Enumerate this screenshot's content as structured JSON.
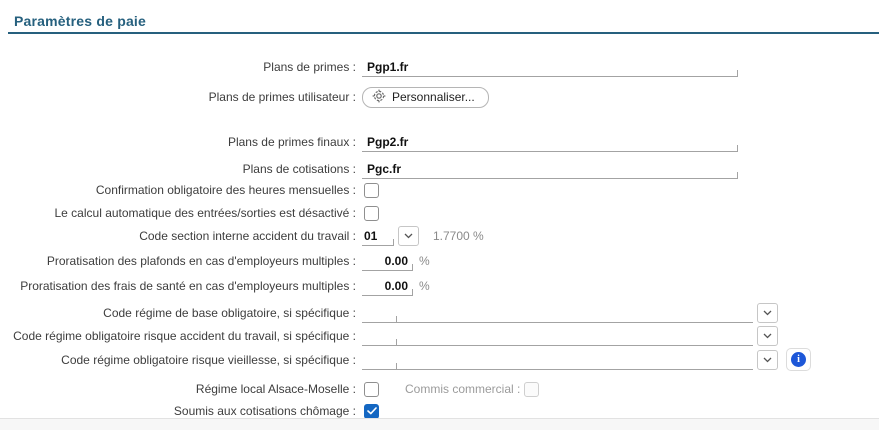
{
  "colors": {
    "title_accent": "#26607e",
    "checkbox_checked": "#1467c2",
    "info_icon_blue": "#1d57d8",
    "muted_text": "#8a8a8a"
  },
  "section": {
    "title": "Paramètres de paie"
  },
  "fields": {
    "plans_primes": {
      "label": "Plans de primes :",
      "value": "Pgp1.fr"
    },
    "plans_primes_utilisateur": {
      "label": "Plans de primes utilisateur :",
      "button_label": "Personnaliser..."
    },
    "plans_primes_finaux": {
      "label": "Plans de primes finaux :",
      "value": "Pgp2.fr"
    },
    "plans_cotisations": {
      "label": "Plans de cotisations :",
      "value": "Pgc.fr"
    },
    "confirmation_heures": {
      "label": "Confirmation obligatoire des heures mensuelles :",
      "checked": false
    },
    "calcul_auto_desactive": {
      "label": "Le calcul automatique des entrées/sorties est désactivé :",
      "checked": false
    },
    "code_section_at": {
      "label": "Code section interne accident du travail :",
      "value": "01",
      "rate": "1.7700 %"
    },
    "proratisation_plafonds": {
      "label": "Proratisation des plafonds en cas d'employeurs multiples :",
      "value": "0.00",
      "unit": "%"
    },
    "proratisation_frais_sante": {
      "label": "Proratisation des frais de santé en cas d'employeurs multiples :",
      "value": "0.00",
      "unit": "%"
    },
    "code_regime_base": {
      "label": "Code régime de base obligatoire, si spécifique :",
      "value": ""
    },
    "code_regime_at": {
      "label": "Code régime obligatoire risque accident du travail, si spécifique :",
      "value": ""
    },
    "code_regime_vieillesse": {
      "label": "Code régime obligatoire risque vieillesse, si spécifique :",
      "value": ""
    },
    "regime_alsace": {
      "label": "Régime local Alsace-Moselle :",
      "checked": false
    },
    "commis_commercial": {
      "label": "Commis commercial :",
      "checked": false,
      "disabled": true
    },
    "soumis_chomage": {
      "label": "Soumis aux cotisations chômage :",
      "checked": true
    }
  }
}
